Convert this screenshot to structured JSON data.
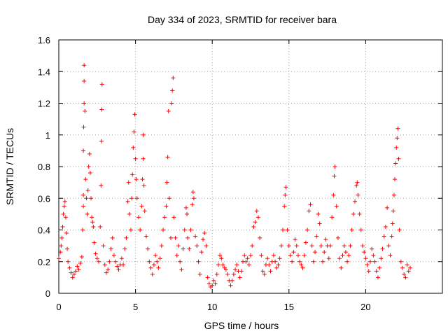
{
  "chart_data": {
    "type": "scatter",
    "title": "Day 334 of 2023, SRMTID for receiver bara",
    "xlabel": "GPS time / hours",
    "ylabel": "SRMTID / TECUs",
    "xlim": [
      0,
      25
    ],
    "ylim": [
      0,
      1.6
    ],
    "grid": true,
    "x_ticks": [
      0,
      5,
      10,
      15,
      20
    ],
    "x_tick_labels": [
      "0",
      "5",
      "10",
      "15",
      "20"
    ],
    "y_ticks": [
      0,
      0.2,
      0.4,
      0.6,
      0.8,
      1.0,
      1.2,
      1.4,
      1.6
    ],
    "y_tick_labels": [
      "0",
      "0.2",
      "0.4",
      "0.6",
      "0.8",
      "1",
      "1.2",
      "1.4",
      "1.6"
    ],
    "marker": "+",
    "color": "#ff0000",
    "series": [
      {
        "name": "SRMTID",
        "points": [
          [
            0.0,
            0.22
          ],
          [
            0.1,
            0.26
          ],
          [
            0.15,
            0.3
          ],
          [
            0.2,
            0.35
          ],
          [
            0.25,
            0.42
          ],
          [
            0.3,
            0.5
          ],
          [
            0.35,
            0.55
          ],
          [
            0.4,
            0.58
          ],
          [
            0.45,
            0.48
          ],
          [
            0.5,
            0.38
          ],
          [
            0.55,
            0.28
          ],
          [
            0.6,
            0.2
          ],
          [
            0.7,
            0.16
          ],
          [
            0.8,
            0.13
          ],
          [
            0.9,
            0.1
          ],
          [
            1.0,
            0.12
          ],
          [
            1.1,
            0.14
          ],
          [
            1.2,
            0.17
          ],
          [
            1.3,
            0.15
          ],
          [
            1.4,
            0.19
          ],
          [
            1.5,
            0.23
          ],
          [
            1.55,
            0.4
          ],
          [
            1.6,
            0.55
          ],
          [
            1.6,
            0.62
          ],
          [
            1.6,
            0.9
          ],
          [
            1.62,
            1.05
          ],
          [
            1.65,
            1.2
          ],
          [
            1.65,
            1.34
          ],
          [
            1.65,
            1.44
          ],
          [
            1.7,
            1.15
          ],
          [
            1.75,
            0.72
          ],
          [
            1.8,
            0.6
          ],
          [
            1.85,
            0.5
          ],
          [
            1.9,
            0.65
          ],
          [
            1.95,
            0.8
          ],
          [
            2.0,
            0.88
          ],
          [
            2.05,
            0.76
          ],
          [
            2.1,
            0.6
          ],
          [
            2.15,
            0.48
          ],
          [
            2.2,
            0.45
          ],
          [
            2.25,
            0.42
          ],
          [
            2.3,
            0.32
          ],
          [
            2.4,
            0.25
          ],
          [
            2.5,
            0.22
          ],
          [
            2.6,
            0.2
          ],
          [
            2.7,
            0.42
          ],
          [
            2.75,
            0.68
          ],
          [
            2.78,
            0.96
          ],
          [
            2.8,
            1.16
          ],
          [
            2.82,
            1.32
          ],
          [
            2.9,
            0.3
          ],
          [
            3.0,
            0.18
          ],
          [
            3.1,
            0.13
          ],
          [
            3.2,
            0.15
          ],
          [
            3.3,
            0.2
          ],
          [
            3.4,
            0.28
          ],
          [
            3.5,
            0.35
          ],
          [
            3.6,
            0.24
          ],
          [
            3.7,
            0.2
          ],
          [
            3.8,
            0.17
          ],
          [
            3.9,
            0.15
          ],
          [
            4.0,
            0.18
          ],
          [
            4.1,
            0.22
          ],
          [
            4.2,
            0.18
          ],
          [
            4.3,
            0.28
          ],
          [
            4.4,
            0.35
          ],
          [
            4.5,
            0.58
          ],
          [
            4.55,
            0.7
          ],
          [
            4.6,
            0.5
          ],
          [
            4.7,
            0.4
          ],
          [
            4.75,
            0.6
          ],
          [
            4.8,
            0.75
          ],
          [
            4.85,
            0.92
          ],
          [
            4.9,
            1.02
          ],
          [
            4.95,
            1.13
          ],
          [
            5.0,
            0.85
          ],
          [
            5.05,
            0.72
          ],
          [
            5.1,
            0.6
          ],
          [
            5.2,
            0.48
          ],
          [
            5.3,
            0.4
          ],
          [
            5.4,
            0.55
          ],
          [
            5.45,
            0.72
          ],
          [
            5.5,
            0.85
          ],
          [
            5.5,
            1.0
          ],
          [
            5.55,
            0.68
          ],
          [
            5.6,
            0.52
          ],
          [
            5.7,
            0.36
          ],
          [
            5.8,
            0.28
          ],
          [
            5.9,
            0.2
          ],
          [
            6.0,
            0.16
          ],
          [
            6.1,
            0.12
          ],
          [
            6.2,
            0.18
          ],
          [
            6.3,
            0.24
          ],
          [
            6.4,
            0.2
          ],
          [
            6.5,
            0.16
          ],
          [
            6.6,
            0.22
          ],
          [
            6.7,
            0.3
          ],
          [
            6.8,
            0.4
          ],
          [
            6.9,
            0.48
          ],
          [
            7.0,
            0.55
          ],
          [
            7.05,
            0.7
          ],
          [
            7.1,
            0.86
          ],
          [
            7.15,
            1.15
          ],
          [
            7.2,
            0.6
          ],
          [
            7.3,
            0.35
          ],
          [
            7.35,
            1.2
          ],
          [
            7.4,
            1.28
          ],
          [
            7.45,
            1.36
          ],
          [
            7.5,
            0.48
          ],
          [
            7.6,
            0.35
          ],
          [
            7.7,
            0.24
          ],
          [
            7.8,
            0.3
          ],
          [
            7.9,
            0.2
          ],
          [
            8.0,
            0.15
          ],
          [
            8.1,
            0.28
          ],
          [
            8.2,
            0.4
          ],
          [
            8.3,
            0.54
          ],
          [
            8.35,
            0.5
          ],
          [
            8.4,
            0.35
          ],
          [
            8.5,
            0.28
          ],
          [
            8.6,
            0.4
          ],
          [
            8.7,
            0.56
          ],
          [
            8.75,
            0.64
          ],
          [
            8.8,
            0.6
          ],
          [
            8.9,
            0.36
          ],
          [
            9.0,
            0.3
          ],
          [
            9.1,
            0.2
          ],
          [
            9.2,
            0.12
          ],
          [
            9.3,
            0.26
          ],
          [
            9.4,
            0.34
          ],
          [
            9.5,
            0.38
          ],
          [
            9.6,
            0.3
          ],
          [
            9.7,
            0.1
          ],
          [
            9.8,
            0.06
          ],
          [
            9.9,
            0.04
          ],
          [
            10.0,
            0.05
          ],
          [
            10.1,
            0.08
          ],
          [
            10.2,
            0.06
          ],
          [
            10.3,
            0.12
          ],
          [
            10.4,
            0.18
          ],
          [
            10.5,
            0.24
          ],
          [
            10.6,
            0.22
          ],
          [
            10.7,
            0.18
          ],
          [
            10.8,
            0.16
          ],
          [
            10.9,
            0.15
          ],
          [
            11.0,
            0.12
          ],
          [
            11.1,
            0.08
          ],
          [
            11.2,
            0.05
          ],
          [
            11.3,
            0.08
          ],
          [
            11.4,
            0.12
          ],
          [
            11.5,
            0.15
          ],
          [
            11.6,
            0.18
          ],
          [
            11.7,
            0.14
          ],
          [
            11.8,
            0.1
          ],
          [
            11.9,
            0.14
          ],
          [
            12.0,
            0.2
          ],
          [
            12.1,
            0.24
          ],
          [
            12.2,
            0.2
          ],
          [
            12.3,
            0.22
          ],
          [
            12.4,
            0.18
          ],
          [
            12.5,
            0.24
          ],
          [
            12.6,
            0.3
          ],
          [
            12.7,
            0.42
          ],
          [
            12.8,
            0.45
          ],
          [
            12.9,
            0.52
          ],
          [
            13.0,
            0.48
          ],
          [
            13.1,
            0.35
          ],
          [
            13.2,
            0.24
          ],
          [
            13.3,
            0.14
          ],
          [
            13.4,
            0.12
          ],
          [
            13.5,
            0.18
          ],
          [
            13.6,
            0.22
          ],
          [
            13.7,
            0.18
          ],
          [
            13.8,
            0.14
          ],
          [
            13.9,
            0.2
          ],
          [
            14.0,
            0.24
          ],
          [
            14.1,
            0.2
          ],
          [
            14.2,
            0.16
          ],
          [
            14.3,
            0.18
          ],
          [
            14.4,
            0.22
          ],
          [
            14.5,
            0.3
          ],
          [
            14.6,
            0.4
          ],
          [
            14.7,
            0.55
          ],
          [
            14.75,
            0.62
          ],
          [
            14.8,
            0.67
          ],
          [
            14.9,
            0.4
          ],
          [
            15.0,
            0.3
          ],
          [
            15.1,
            0.24
          ],
          [
            15.2,
            0.2
          ],
          [
            15.3,
            0.26
          ],
          [
            15.4,
            0.34
          ],
          [
            15.5,
            0.3
          ],
          [
            15.6,
            0.24
          ],
          [
            15.7,
            0.2
          ],
          [
            15.8,
            0.18
          ],
          [
            15.9,
            0.16
          ],
          [
            16.0,
            0.24
          ],
          [
            16.1,
            0.32
          ],
          [
            16.2,
            0.4
          ],
          [
            16.3,
            0.52
          ],
          [
            16.4,
            0.56
          ],
          [
            16.5,
            0.3
          ],
          [
            16.6,
            0.2
          ],
          [
            16.7,
            0.26
          ],
          [
            16.8,
            0.36
          ],
          [
            16.9,
            0.5
          ],
          [
            17.0,
            0.44
          ],
          [
            17.1,
            0.3
          ],
          [
            17.2,
            0.2
          ],
          [
            17.3,
            0.26
          ],
          [
            17.4,
            0.34
          ],
          [
            17.5,
            0.3
          ],
          [
            17.6,
            0.22
          ],
          [
            17.7,
            0.3
          ],
          [
            17.8,
            0.48
          ],
          [
            17.9,
            0.62
          ],
          [
            17.95,
            0.74
          ],
          [
            18.0,
            0.8
          ],
          [
            18.1,
            0.55
          ],
          [
            18.2,
            0.35
          ],
          [
            18.3,
            0.22
          ],
          [
            18.4,
            0.16
          ],
          [
            18.5,
            0.24
          ],
          [
            18.6,
            0.3
          ],
          [
            18.7,
            0.26
          ],
          [
            18.8,
            0.2
          ],
          [
            18.9,
            0.24
          ],
          [
            19.0,
            0.3
          ],
          [
            19.1,
            0.4
          ],
          [
            19.2,
            0.5
          ],
          [
            19.3,
            0.58
          ],
          [
            19.4,
            0.68
          ],
          [
            19.45,
            0.7
          ],
          [
            19.5,
            0.62
          ],
          [
            19.6,
            0.5
          ],
          [
            19.7,
            0.4
          ],
          [
            19.8,
            0.3
          ],
          [
            19.9,
            0.26
          ],
          [
            20.0,
            0.22
          ],
          [
            20.1,
            0.18
          ],
          [
            20.2,
            0.14
          ],
          [
            20.3,
            0.2
          ],
          [
            20.4,
            0.28
          ],
          [
            20.5,
            0.24
          ],
          [
            20.6,
            0.2
          ],
          [
            20.7,
            0.14
          ],
          [
            20.8,
            0.1
          ],
          [
            20.9,
            0.16
          ],
          [
            21.0,
            0.22
          ],
          [
            21.1,
            0.28
          ],
          [
            21.2,
            0.36
          ],
          [
            21.3,
            0.42
          ],
          [
            21.4,
            0.54
          ],
          [
            21.5,
            0.3
          ],
          [
            21.6,
            0.24
          ],
          [
            21.7,
            0.36
          ],
          [
            21.75,
            0.44
          ],
          [
            21.8,
            0.52
          ],
          [
            21.85,
            0.62
          ],
          [
            21.9,
            0.72
          ],
          [
            21.95,
            0.82
          ],
          [
            22.0,
            0.92
          ],
          [
            22.05,
            0.98
          ],
          [
            22.1,
            1.04
          ],
          [
            22.15,
            0.85
          ],
          [
            22.2,
            0.4
          ],
          [
            22.3,
            0.2
          ],
          [
            22.4,
            0.16
          ],
          [
            22.5,
            0.12
          ],
          [
            22.6,
            0.1
          ],
          [
            22.7,
            0.18
          ],
          [
            22.8,
            0.14
          ],
          [
            22.9,
            0.16
          ]
        ]
      }
    ]
  }
}
